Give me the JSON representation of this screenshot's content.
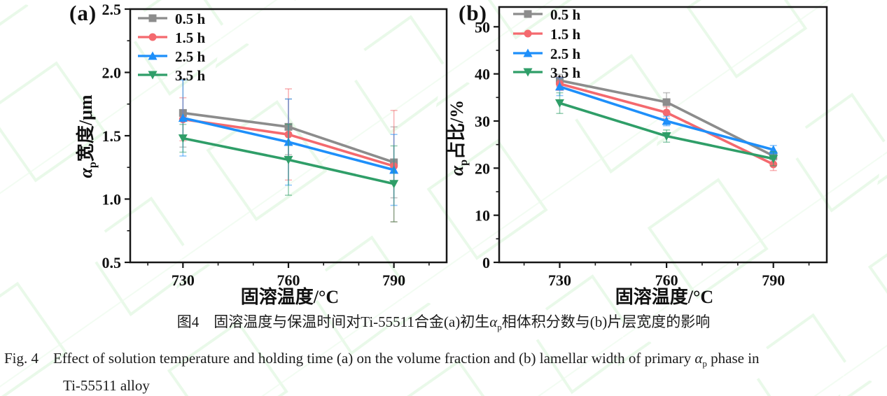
{
  "watermark": {
    "color": "#aeeaae",
    "line_color": "#d8f6d8"
  },
  "panels": {
    "a": {
      "label": "(a)",
      "ylabel": {
        "alpha": "α",
        "sub": "p",
        "rest": "宽度/μm"
      },
      "xlabel": "固溶温度/°C"
    },
    "b": {
      "label": "(b)",
      "ylabel": {
        "alpha": "α",
        "sub": "p",
        "rest": "占比/%"
      },
      "xlabel": "固溶温度/°C"
    }
  },
  "captions": {
    "zh": {
      "pre": "图4　固溶温度与保温时间对Ti-55511合金(a)初生",
      "alpha": "α",
      "sub": "p",
      "post": "相体积分数与(b)片层宽度的影响"
    },
    "en": {
      "pre": "Fig. 4　Effect of solution temperature and holding time (a) on the volume fraction and (b) lamellar width of primary ",
      "alpha": "α",
      "sub": "p",
      "post": " phase in",
      "line2": "Ti-55511 alloy"
    }
  },
  "chart_data": [
    {
      "type": "line",
      "panel": "a",
      "title": "",
      "xlabel": "固溶温度/°C",
      "ylabel": "αp宽度/μm",
      "x": [
        730,
        760,
        790
      ],
      "xlim": [
        715,
        805
      ],
      "ylim": [
        0.5,
        2.5
      ],
      "xticks": [
        730,
        760,
        790
      ],
      "xtick_labels": [
        "730",
        "760",
        "790"
      ],
      "xminor": [
        720,
        740,
        750,
        770,
        780,
        800
      ],
      "yticks": [
        0.5,
        1.0,
        1.5,
        2.0,
        2.5
      ],
      "ytick_labels": [
        "0.5",
        "1.0",
        "1.5",
        "2.0",
        "2.5"
      ],
      "yminor": [
        0.75,
        1.25,
        1.75,
        2.25
      ],
      "grid": false,
      "legend_position": "top-left",
      "series": [
        {
          "name": "0.5 h",
          "marker": "square",
          "color": "#8c8c8c",
          "values": [
            1.68,
            1.57,
            1.29
          ],
          "errors": [
            0.27,
            0.22,
            0.28
          ]
        },
        {
          "name": "1.5 h",
          "marker": "circle",
          "color": "#f4696e",
          "values": [
            1.63,
            1.51,
            1.26
          ],
          "errors": [
            0.17,
            0.36,
            0.44
          ]
        },
        {
          "name": "2.5 h",
          "marker": "triangle-up",
          "color": "#1e8ffa",
          "values": [
            1.64,
            1.45,
            1.23
          ],
          "errors": [
            0.3,
            0.34,
            0.28
          ]
        },
        {
          "name": "3.5 h",
          "marker": "triangle-down",
          "color": "#2f9e68",
          "values": [
            1.48,
            1.31,
            1.12
          ],
          "errors": [
            0.11,
            0.28,
            0.3
          ]
        }
      ]
    },
    {
      "type": "line",
      "panel": "b",
      "title": "",
      "xlabel": "固溶温度/°C",
      "ylabel": "αp占比/%",
      "x": [
        730,
        760,
        790
      ],
      "xlim": [
        713,
        805
      ],
      "ylim": [
        0,
        54.2
      ],
      "xticks": [
        730,
        760,
        790
      ],
      "xtick_labels": [
        "730",
        "760",
        "790"
      ],
      "xminor": [
        720,
        740,
        750,
        770,
        780,
        800
      ],
      "yticks": [
        0,
        10,
        20,
        30,
        40,
        50
      ],
      "ytick_labels": [
        "0",
        "10",
        "20",
        "30",
        "40",
        "50"
      ],
      "yminor": [
        5,
        15,
        25,
        35,
        45
      ],
      "grid": false,
      "legend_position": "top-left",
      "series": [
        {
          "name": "0.5 h",
          "marker": "square",
          "color": "#8c8c8c",
          "values": [
            38.6,
            34.0,
            22.6
          ],
          "errors": [
            1.3,
            2.0,
            0.9
          ]
        },
        {
          "name": "1.5 h",
          "marker": "circle",
          "color": "#f4696e",
          "values": [
            37.9,
            31.8,
            20.8
          ],
          "errors": [
            1.4,
            1.2,
            1.3
          ]
        },
        {
          "name": "2.5 h",
          "marker": "triangle-up",
          "color": "#1e8ffa",
          "values": [
            37.3,
            30.0,
            23.9
          ],
          "errors": [
            1.9,
            1.0,
            0.9
          ]
        },
        {
          "name": "3.5 h",
          "marker": "triangle-down",
          "color": "#2f9e68",
          "values": [
            33.8,
            26.8,
            22.0
          ],
          "errors": [
            2.2,
            1.3,
            1.5
          ]
        }
      ]
    }
  ]
}
